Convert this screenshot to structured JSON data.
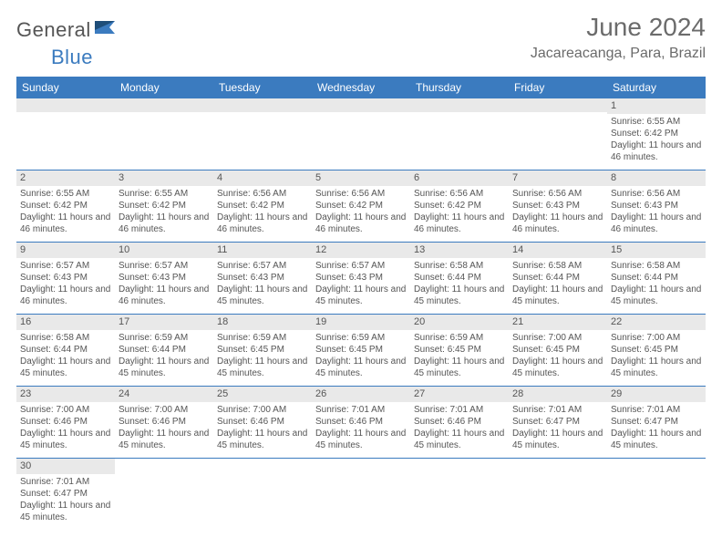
{
  "logo": {
    "part1": "General",
    "part2": "Blue"
  },
  "title": "June 2024",
  "location": "Jacareacanga, Para, Brazil",
  "colors": {
    "header_bg": "#3b7bbf",
    "header_text": "#ffffff",
    "daynum_bg": "#e9e9e9",
    "cell_border": "#3b7bbf",
    "body_text": "#555555"
  },
  "day_headers": [
    "Sunday",
    "Monday",
    "Tuesday",
    "Wednesday",
    "Thursday",
    "Friday",
    "Saturday"
  ],
  "weeks": [
    [
      null,
      null,
      null,
      null,
      null,
      null,
      {
        "n": "1",
        "sunrise": "6:55 AM",
        "sunset": "6:42 PM",
        "daylight": "11 hours and 46 minutes."
      }
    ],
    [
      {
        "n": "2",
        "sunrise": "6:55 AM",
        "sunset": "6:42 PM",
        "daylight": "11 hours and 46 minutes."
      },
      {
        "n": "3",
        "sunrise": "6:55 AM",
        "sunset": "6:42 PM",
        "daylight": "11 hours and 46 minutes."
      },
      {
        "n": "4",
        "sunrise": "6:56 AM",
        "sunset": "6:42 PM",
        "daylight": "11 hours and 46 minutes."
      },
      {
        "n": "5",
        "sunrise": "6:56 AM",
        "sunset": "6:42 PM",
        "daylight": "11 hours and 46 minutes."
      },
      {
        "n": "6",
        "sunrise": "6:56 AM",
        "sunset": "6:42 PM",
        "daylight": "11 hours and 46 minutes."
      },
      {
        "n": "7",
        "sunrise": "6:56 AM",
        "sunset": "6:43 PM",
        "daylight": "11 hours and 46 minutes."
      },
      {
        "n": "8",
        "sunrise": "6:56 AM",
        "sunset": "6:43 PM",
        "daylight": "11 hours and 46 minutes."
      }
    ],
    [
      {
        "n": "9",
        "sunrise": "6:57 AM",
        "sunset": "6:43 PM",
        "daylight": "11 hours and 46 minutes."
      },
      {
        "n": "10",
        "sunrise": "6:57 AM",
        "sunset": "6:43 PM",
        "daylight": "11 hours and 46 minutes."
      },
      {
        "n": "11",
        "sunrise": "6:57 AM",
        "sunset": "6:43 PM",
        "daylight": "11 hours and 45 minutes."
      },
      {
        "n": "12",
        "sunrise": "6:57 AM",
        "sunset": "6:43 PM",
        "daylight": "11 hours and 45 minutes."
      },
      {
        "n": "13",
        "sunrise": "6:58 AM",
        "sunset": "6:44 PM",
        "daylight": "11 hours and 45 minutes."
      },
      {
        "n": "14",
        "sunrise": "6:58 AM",
        "sunset": "6:44 PM",
        "daylight": "11 hours and 45 minutes."
      },
      {
        "n": "15",
        "sunrise": "6:58 AM",
        "sunset": "6:44 PM",
        "daylight": "11 hours and 45 minutes."
      }
    ],
    [
      {
        "n": "16",
        "sunrise": "6:58 AM",
        "sunset": "6:44 PM",
        "daylight": "11 hours and 45 minutes."
      },
      {
        "n": "17",
        "sunrise": "6:59 AM",
        "sunset": "6:44 PM",
        "daylight": "11 hours and 45 minutes."
      },
      {
        "n": "18",
        "sunrise": "6:59 AM",
        "sunset": "6:45 PM",
        "daylight": "11 hours and 45 minutes."
      },
      {
        "n": "19",
        "sunrise": "6:59 AM",
        "sunset": "6:45 PM",
        "daylight": "11 hours and 45 minutes."
      },
      {
        "n": "20",
        "sunrise": "6:59 AM",
        "sunset": "6:45 PM",
        "daylight": "11 hours and 45 minutes."
      },
      {
        "n": "21",
        "sunrise": "7:00 AM",
        "sunset": "6:45 PM",
        "daylight": "11 hours and 45 minutes."
      },
      {
        "n": "22",
        "sunrise": "7:00 AM",
        "sunset": "6:45 PM",
        "daylight": "11 hours and 45 minutes."
      }
    ],
    [
      {
        "n": "23",
        "sunrise": "7:00 AM",
        "sunset": "6:46 PM",
        "daylight": "11 hours and 45 minutes."
      },
      {
        "n": "24",
        "sunrise": "7:00 AM",
        "sunset": "6:46 PM",
        "daylight": "11 hours and 45 minutes."
      },
      {
        "n": "25",
        "sunrise": "7:00 AM",
        "sunset": "6:46 PM",
        "daylight": "11 hours and 45 minutes."
      },
      {
        "n": "26",
        "sunrise": "7:01 AM",
        "sunset": "6:46 PM",
        "daylight": "11 hours and 45 minutes."
      },
      {
        "n": "27",
        "sunrise": "7:01 AM",
        "sunset": "6:46 PM",
        "daylight": "11 hours and 45 minutes."
      },
      {
        "n": "28",
        "sunrise": "7:01 AM",
        "sunset": "6:47 PM",
        "daylight": "11 hours and 45 minutes."
      },
      {
        "n": "29",
        "sunrise": "7:01 AM",
        "sunset": "6:47 PM",
        "daylight": "11 hours and 45 minutes."
      }
    ],
    [
      {
        "n": "30",
        "sunrise": "7:01 AM",
        "sunset": "6:47 PM",
        "daylight": "11 hours and 45 minutes."
      },
      null,
      null,
      null,
      null,
      null,
      null
    ]
  ],
  "labels": {
    "sunrise_prefix": "Sunrise: ",
    "sunset_prefix": "Sunset: ",
    "daylight_prefix": "Daylight: "
  }
}
